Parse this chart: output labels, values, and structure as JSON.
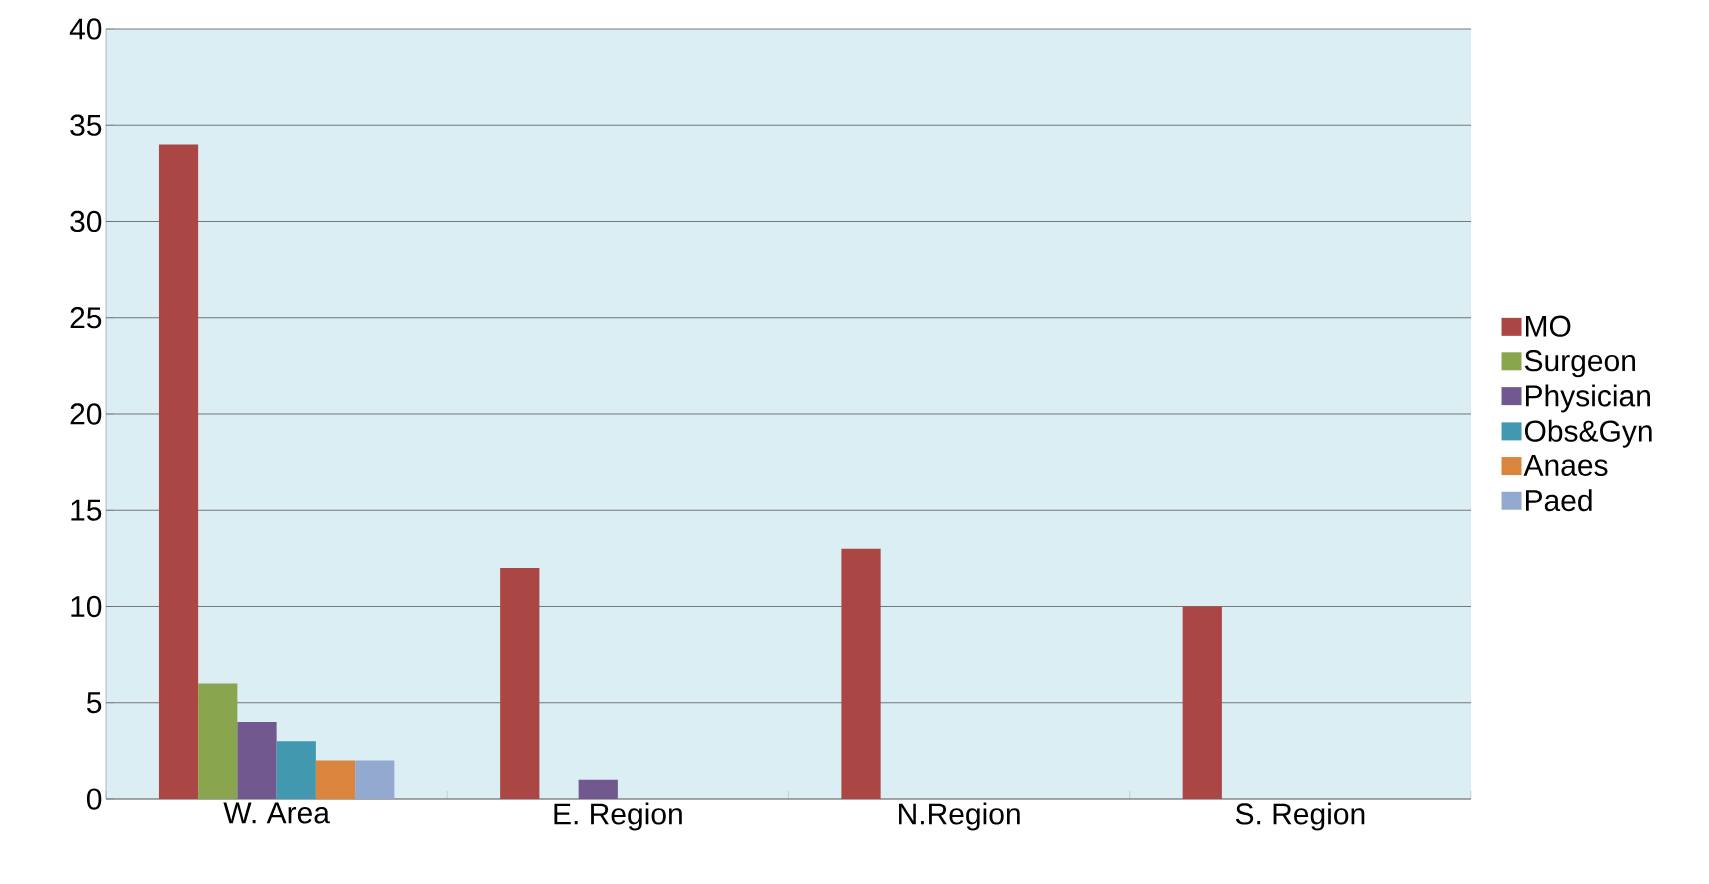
{
  "chart_data": {
    "type": "bar",
    "categories": [
      "W. Area",
      "E. Region",
      "N.Region",
      "S. Region"
    ],
    "series": [
      {
        "name": "MO",
        "color": "#aa4643",
        "values": [
          34,
          12,
          13,
          10
        ]
      },
      {
        "name": "Surgeon",
        "color": "#89a54e",
        "values": [
          6,
          0,
          0,
          0
        ]
      },
      {
        "name": "Physician",
        "color": "#71588f",
        "values": [
          4,
          1,
          0,
          0
        ]
      },
      {
        "name": "Obs&Gyn",
        "color": "#4198af",
        "values": [
          3,
          0,
          0,
          0
        ]
      },
      {
        "name": "Anaes",
        "color": "#db843d",
        "values": [
          2,
          0,
          0,
          0
        ]
      },
      {
        "name": "Paed",
        "color": "#93a9cf",
        "values": [
          2,
          0,
          0,
          0
        ]
      }
    ],
    "ylim": [
      0,
      40
    ],
    "yticks": [
      0,
      5,
      10,
      15,
      20,
      25,
      30,
      35,
      40
    ],
    "grid": "y",
    "legend": "right"
  }
}
